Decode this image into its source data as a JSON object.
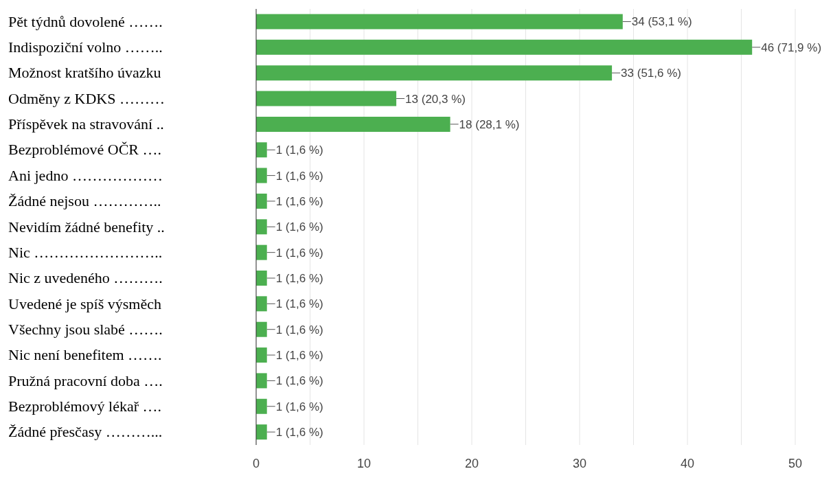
{
  "chart_data": {
    "type": "bar",
    "orientation": "horizontal",
    "categories": [
      "Pět týdnů dovolené …….",
      "Indispoziční volno ……..",
      "Možnost kratšího úvazku",
      "Odměny z KDKS ………",
      "Příspěvek na stravování ..",
      "Bezproblémové OČR ….",
      "Ani jedno ………………",
      "Žádné nejsou …………..",
      "Nevidím žádné benefity ..",
      "Nic ……………………..",
      "Nic z uvedeného ……….",
      "Uvedené je spíš výsměch",
      "Všechny jsou slabé …….",
      "Nic není benefitem …….",
      "Pružná pracovní doba ….",
      "Bezproblémový lékař ….",
      "Žádné přesčasy ………..."
    ],
    "values": [
      34,
      46,
      33,
      13,
      18,
      1,
      1,
      1,
      1,
      1,
      1,
      1,
      1,
      1,
      1,
      1,
      1
    ],
    "value_labels": [
      "34 (53,1 %)",
      "46 (71,9 %)",
      "33 (51,6 %)",
      "13 (20,3 %)",
      "18 (28,1 %)",
      "1 (1,6 %)",
      "1 (1,6 %)",
      "1 (1,6 %)",
      "1 (1,6 %)",
      "1 (1,6 %)",
      "1 (1,6 %)",
      "1 (1,6 %)",
      "1 (1,6 %)",
      "1 (1,6 %)",
      "1 (1,6 %)",
      "1 (1,6 %)",
      "1 (1,6 %)"
    ],
    "color": "#4caf50",
    "xlim": [
      0,
      50
    ],
    "xticks": [
      0,
      {
        "value": 5,
        "label": null
      },
      10,
      {
        "value": 15,
        "label": null
      },
      20,
      {
        "value": 25,
        "label": null
      },
      30,
      {
        "value": 35,
        "label": null
      },
      40,
      {
        "value": 45,
        "label": null
      },
      50
    ],
    "grid": "x"
  }
}
